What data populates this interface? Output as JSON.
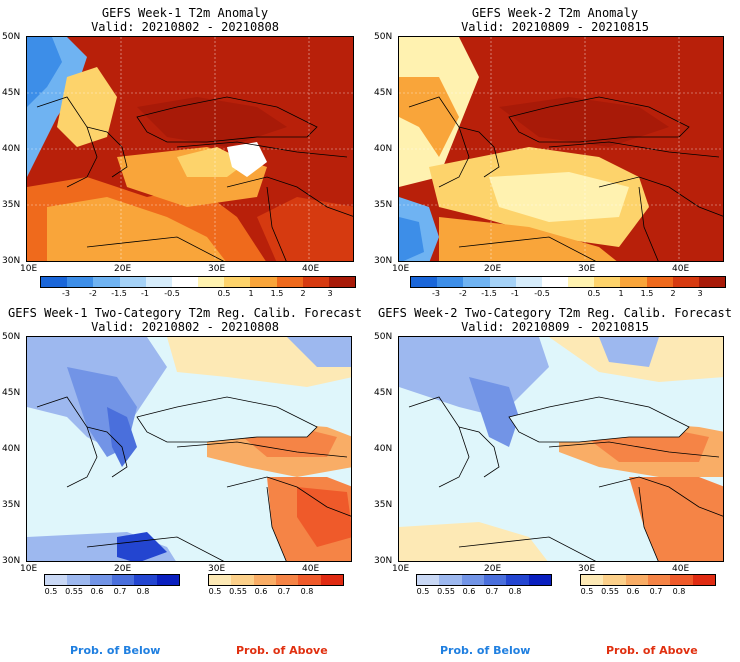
{
  "panels": [
    {
      "title": "GEFS Week-1 T2m Anomaly",
      "valid": "Valid: 20210802 - 20210808",
      "kind": "anomaly"
    },
    {
      "title": "GEFS Week-2 T2m Anomaly",
      "valid": "Valid: 20210809 - 20210815",
      "kind": "anomaly"
    },
    {
      "title": "GEFS Week-1 Two-Category T2m Reg. Calib. Forecast",
      "valid": "Valid: 20210802 - 20210808",
      "kind": "prob"
    },
    {
      "title": "GEFS Week-2 Two-Category T2m Reg. Calib. Forecast",
      "valid": "Valid: 20210809 - 20210815",
      "kind": "prob"
    }
  ],
  "lat_labels": [
    "50N",
    "45N",
    "40N",
    "35N",
    "30N"
  ],
  "lon_labels": [
    "10E",
    "20E",
    "30E",
    "40E"
  ],
  "anomaly_scale": {
    "labels": [
      "-3",
      "-2",
      "-1.5",
      "-1",
      "-0.5",
      "0.5",
      "1",
      "1.5",
      "2",
      "3"
    ],
    "colors": [
      "#1a66d9",
      "#3d8ee8",
      "#6fb3f2",
      "#a5d2f7",
      "#d6ecfb",
      "#ffffff",
      "#fff2b0",
      "#fdd36b",
      "#f9a53a",
      "#ef6a1c",
      "#d63a10",
      "#a81a08"
    ]
  },
  "prob_below_scale": {
    "labels": [
      "0.5",
      "0.55",
      "0.6",
      "0.7",
      "0.8"
    ],
    "colors": [
      "#c9d8f5",
      "#9db8ef",
      "#7294e6",
      "#4a6fdc",
      "#2345d0",
      "#0a1fbf"
    ]
  },
  "prob_above_scale": {
    "labels": [
      "0.5",
      "0.55",
      "0.6",
      "0.7",
      "0.8"
    ],
    "colors": [
      "#fde9b5",
      "#fcd08a",
      "#f9ad66",
      "#f58446",
      "#ef5a2a",
      "#e02b12"
    ]
  },
  "legend": {
    "below": "Prob. of Below",
    "above": "Prob. of Above",
    "below_color": "#1f7fe0",
    "above_color": "#e03010"
  },
  "colors": {
    "sea_prob": "#dff6fb",
    "sea_anom": "#fdf1c4",
    "anom_hot": "#b8200a",
    "anom_warm": "#e85a18"
  }
}
